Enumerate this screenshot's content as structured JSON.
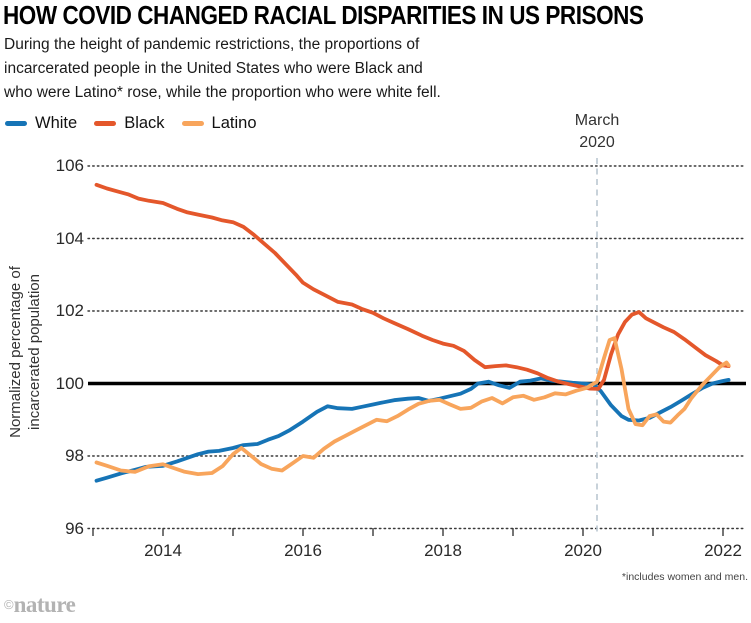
{
  "header": {
    "title": "HOW COVID CHANGED RACIAL DISPARITIES IN US PRISONS",
    "subtitle_lines": [
      "During the height of pandemic restrictions, the proportions of",
      "incarcerated people in the United States who were Black and",
      "who were Latino* rose, while the proportion who were white fell."
    ]
  },
  "legend": {
    "items": [
      {
        "label": "White",
        "color": "#1674b6"
      },
      {
        "label": "Black",
        "color": "#e4572b"
      },
      {
        "label": "Latino",
        "color": "#f8a55c"
      }
    ]
  },
  "annotation": {
    "line1": "March",
    "line2": "2020",
    "x_year": 2020.2,
    "line_color": "#bac7d1"
  },
  "y_axis": {
    "title_lines": [
      "Normalized percentage of",
      "incarcerated population"
    ],
    "ticks": [
      96,
      98,
      100,
      102,
      104,
      106
    ],
    "baseline": 100
  },
  "x_axis": {
    "tick_years": [
      2013,
      2014,
      2015,
      2016,
      2017,
      2018,
      2019,
      2020,
      2021,
      2022
    ],
    "labeled_years": [
      2014,
      2016,
      2018,
      2020,
      2022
    ]
  },
  "footnote": "*includes women and men.",
  "credit": {
    "symbol": "©",
    "name": "nature"
  },
  "chart_data": {
    "type": "line",
    "title": "HOW COVID CHANGED RACIAL DISPARITIES IN US PRISONS",
    "xlabel": "",
    "ylabel": "Normalized percentage of incarcerated population",
    "x_range": [
      2013,
      2022.1
    ],
    "ylim": [
      96,
      106
    ],
    "baseline_y": 100,
    "grid": "dotted-horizontal",
    "legend_position": "top-left",
    "annotation": {
      "label": "March 2020",
      "x": 2020.2
    },
    "series": [
      {
        "name": "White",
        "color": "#1674b6",
        "points": [
          [
            2013.05,
            97.32
          ],
          [
            2013.2,
            97.4
          ],
          [
            2013.4,
            97.52
          ],
          [
            2013.6,
            97.62
          ],
          [
            2013.75,
            97.7
          ],
          [
            2014.0,
            97.73
          ],
          [
            2014.2,
            97.85
          ],
          [
            2014.35,
            97.95
          ],
          [
            2014.5,
            98.05
          ],
          [
            2014.65,
            98.12
          ],
          [
            2014.8,
            98.14
          ],
          [
            2015.0,
            98.22
          ],
          [
            2015.15,
            98.3
          ],
          [
            2015.35,
            98.33
          ],
          [
            2015.5,
            98.45
          ],
          [
            2015.65,
            98.55
          ],
          [
            2015.8,
            98.7
          ],
          [
            2016.0,
            98.95
          ],
          [
            2016.2,
            99.22
          ],
          [
            2016.35,
            99.37
          ],
          [
            2016.5,
            99.32
          ],
          [
            2016.7,
            99.3
          ],
          [
            2016.85,
            99.36
          ],
          [
            2017.0,
            99.42
          ],
          [
            2017.15,
            99.48
          ],
          [
            2017.3,
            99.54
          ],
          [
            2017.5,
            99.58
          ],
          [
            2017.65,
            99.6
          ],
          [
            2017.8,
            99.52
          ],
          [
            2017.95,
            99.58
          ],
          [
            2018.1,
            99.65
          ],
          [
            2018.25,
            99.72
          ],
          [
            2018.4,
            99.85
          ],
          [
            2018.5,
            100.0
          ],
          [
            2018.65,
            100.05
          ],
          [
            2018.8,
            99.95
          ],
          [
            2018.95,
            99.88
          ],
          [
            2019.1,
            100.05
          ],
          [
            2019.25,
            100.08
          ],
          [
            2019.4,
            100.14
          ],
          [
            2019.55,
            100.08
          ],
          [
            2019.7,
            100.05
          ],
          [
            2019.85,
            100.02
          ],
          [
            2020.0,
            100.0
          ],
          [
            2020.15,
            99.97
          ],
          [
            2020.25,
            99.8
          ],
          [
            2020.4,
            99.4
          ],
          [
            2020.55,
            99.1
          ],
          [
            2020.65,
            99.0
          ],
          [
            2020.8,
            98.98
          ],
          [
            2020.95,
            99.05
          ],
          [
            2021.1,
            99.2
          ],
          [
            2021.25,
            99.35
          ],
          [
            2021.4,
            99.52
          ],
          [
            2021.55,
            99.7
          ],
          [
            2021.7,
            99.87
          ],
          [
            2021.85,
            100.0
          ],
          [
            2022.0,
            100.07
          ],
          [
            2022.08,
            100.1
          ]
        ]
      },
      {
        "name": "Black",
        "color": "#e4572b",
        "points": [
          [
            2013.05,
            105.48
          ],
          [
            2013.2,
            105.38
          ],
          [
            2013.35,
            105.3
          ],
          [
            2013.5,
            105.22
          ],
          [
            2013.65,
            105.1
          ],
          [
            2013.8,
            105.04
          ],
          [
            2014.0,
            104.98
          ],
          [
            2014.2,
            104.82
          ],
          [
            2014.35,
            104.72
          ],
          [
            2014.5,
            104.66
          ],
          [
            2014.7,
            104.58
          ],
          [
            2014.85,
            104.5
          ],
          [
            2015.0,
            104.45
          ],
          [
            2015.15,
            104.32
          ],
          [
            2015.3,
            104.1
          ],
          [
            2015.45,
            103.85
          ],
          [
            2015.6,
            103.6
          ],
          [
            2015.75,
            103.3
          ],
          [
            2015.9,
            103.0
          ],
          [
            2016.0,
            102.78
          ],
          [
            2016.15,
            102.6
          ],
          [
            2016.3,
            102.45
          ],
          [
            2016.5,
            102.25
          ],
          [
            2016.7,
            102.18
          ],
          [
            2016.85,
            102.05
          ],
          [
            2017.0,
            101.95
          ],
          [
            2017.15,
            101.8
          ],
          [
            2017.3,
            101.67
          ],
          [
            2017.5,
            101.5
          ],
          [
            2017.7,
            101.32
          ],
          [
            2017.85,
            101.2
          ],
          [
            2018.0,
            101.1
          ],
          [
            2018.15,
            101.04
          ],
          [
            2018.3,
            100.9
          ],
          [
            2018.45,
            100.65
          ],
          [
            2018.6,
            100.45
          ],
          [
            2018.75,
            100.48
          ],
          [
            2018.9,
            100.5
          ],
          [
            2019.05,
            100.45
          ],
          [
            2019.2,
            100.38
          ],
          [
            2019.35,
            100.28
          ],
          [
            2019.5,
            100.15
          ],
          [
            2019.65,
            100.05
          ],
          [
            2019.8,
            99.98
          ],
          [
            2019.95,
            99.92
          ],
          [
            2020.1,
            99.86
          ],
          [
            2020.22,
            99.85
          ],
          [
            2020.3,
            100.1
          ],
          [
            2020.4,
            100.8
          ],
          [
            2020.5,
            101.35
          ],
          [
            2020.6,
            101.7
          ],
          [
            2020.7,
            101.9
          ],
          [
            2020.8,
            101.97
          ],
          [
            2020.9,
            101.8
          ],
          [
            2021.0,
            101.7
          ],
          [
            2021.15,
            101.55
          ],
          [
            2021.3,
            101.42
          ],
          [
            2021.45,
            101.22
          ],
          [
            2021.6,
            101.0
          ],
          [
            2021.75,
            100.78
          ],
          [
            2021.9,
            100.62
          ],
          [
            2022.0,
            100.5
          ],
          [
            2022.08,
            100.48
          ]
        ]
      },
      {
        "name": "Latino",
        "color": "#f8a55c",
        "points": [
          [
            2013.05,
            97.82
          ],
          [
            2013.2,
            97.73
          ],
          [
            2013.4,
            97.6
          ],
          [
            2013.6,
            97.56
          ],
          [
            2013.8,
            97.72
          ],
          [
            2014.0,
            97.77
          ],
          [
            2014.15,
            97.67
          ],
          [
            2014.3,
            97.57
          ],
          [
            2014.5,
            97.5
          ],
          [
            2014.7,
            97.53
          ],
          [
            2014.85,
            97.72
          ],
          [
            2015.0,
            98.05
          ],
          [
            2015.12,
            98.22
          ],
          [
            2015.25,
            98.02
          ],
          [
            2015.4,
            97.78
          ],
          [
            2015.55,
            97.65
          ],
          [
            2015.7,
            97.6
          ],
          [
            2015.85,
            97.8
          ],
          [
            2016.0,
            98.0
          ],
          [
            2016.15,
            97.95
          ],
          [
            2016.3,
            98.2
          ],
          [
            2016.45,
            98.4
          ],
          [
            2016.6,
            98.55
          ],
          [
            2016.75,
            98.7
          ],
          [
            2016.9,
            98.85
          ],
          [
            2017.05,
            99.0
          ],
          [
            2017.2,
            98.96
          ],
          [
            2017.35,
            99.1
          ],
          [
            2017.5,
            99.28
          ],
          [
            2017.65,
            99.44
          ],
          [
            2017.8,
            99.52
          ],
          [
            2017.95,
            99.55
          ],
          [
            2018.1,
            99.42
          ],
          [
            2018.25,
            99.3
          ],
          [
            2018.4,
            99.33
          ],
          [
            2018.55,
            99.5
          ],
          [
            2018.7,
            99.6
          ],
          [
            2018.85,
            99.45
          ],
          [
            2019.0,
            99.62
          ],
          [
            2019.15,
            99.66
          ],
          [
            2019.3,
            99.55
          ],
          [
            2019.45,
            99.62
          ],
          [
            2019.6,
            99.73
          ],
          [
            2019.75,
            99.7
          ],
          [
            2019.9,
            99.8
          ],
          [
            2020.05,
            99.88
          ],
          [
            2020.2,
            100.05
          ],
          [
            2020.3,
            100.7
          ],
          [
            2020.38,
            101.2
          ],
          [
            2020.45,
            101.25
          ],
          [
            2020.55,
            100.4
          ],
          [
            2020.65,
            99.3
          ],
          [
            2020.75,
            98.88
          ],
          [
            2020.85,
            98.85
          ],
          [
            2020.95,
            99.1
          ],
          [
            2021.05,
            99.15
          ],
          [
            2021.15,
            98.95
          ],
          [
            2021.25,
            98.92
          ],
          [
            2021.35,
            99.12
          ],
          [
            2021.45,
            99.3
          ],
          [
            2021.55,
            99.6
          ],
          [
            2021.7,
            99.95
          ],
          [
            2021.85,
            100.25
          ],
          [
            2021.95,
            100.45
          ],
          [
            2022.05,
            100.58
          ],
          [
            2022.08,
            100.5
          ]
        ]
      }
    ]
  }
}
